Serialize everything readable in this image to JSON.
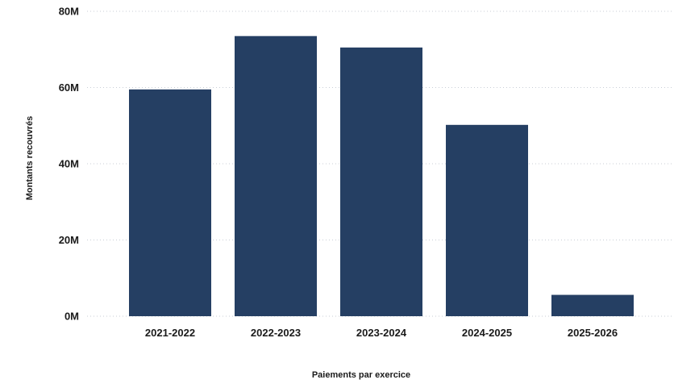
{
  "chart_data": {
    "type": "bar",
    "categories": [
      "2021-2022",
      "2022-2023",
      "2023-2024",
      "2024-2025",
      "2025-2026"
    ],
    "values": [
      59.5,
      73.5,
      70.5,
      50.2,
      5.6
    ],
    "title": "",
    "xlabel": "Paiements par exercice",
    "ylabel": "Montants recouvrés",
    "ylim": [
      0,
      80
    ],
    "yticks": [
      0,
      20,
      40,
      60,
      80
    ],
    "ytick_labels": [
      "0M",
      "20M",
      "40M",
      "60M",
      "80M"
    ],
    "grid": true,
    "bar_color": "#253f63"
  }
}
